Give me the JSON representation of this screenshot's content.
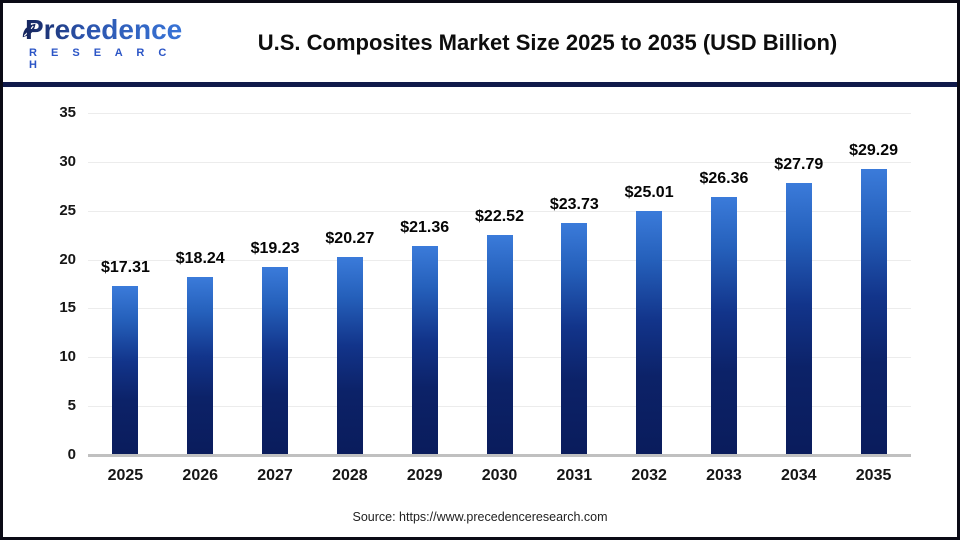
{
  "header": {
    "logo": {
      "name": "Precedence",
      "subname": "R E S E A R C H"
    },
    "title": "U.S. Composites Market Size 2025 to 2035 (USD Billion)"
  },
  "chart_data": {
    "type": "bar",
    "title": "U.S. Composites Market Size 2025 to 2035 (USD Billion)",
    "categories": [
      "2025",
      "2026",
      "2027",
      "2028",
      "2029",
      "2030",
      "2031",
      "2032",
      "2033",
      "2034",
      "2035"
    ],
    "values": [
      17.31,
      18.24,
      19.23,
      20.27,
      21.36,
      22.52,
      23.73,
      25.01,
      26.36,
      27.79,
      29.29
    ],
    "value_labels": [
      "$17.31",
      "$18.24",
      "$19.23",
      "$20.27",
      "$21.36",
      "$22.52",
      "$23.73",
      "$25.01",
      "$26.36",
      "$27.79",
      "$29.29"
    ],
    "xlabel": "",
    "ylabel": "",
    "ylim": [
      0,
      35
    ],
    "yticks": [
      0,
      5,
      10,
      15,
      20,
      25,
      30,
      35
    ],
    "grid": true,
    "legend": "none",
    "bar_color_top": "#3b7bda",
    "bar_color_bottom": "#0a1c5c"
  },
  "footer": {
    "source": "Source: https://www.precedenceresearch.com"
  },
  "colors": {
    "divider": "#101a4a",
    "grid_line": "#ececec",
    "axis_line": "#c0c0c0",
    "logo_navy": "#16265e",
    "logo_blue": "#3a78dc",
    "research_blue": "#2b55c6"
  }
}
